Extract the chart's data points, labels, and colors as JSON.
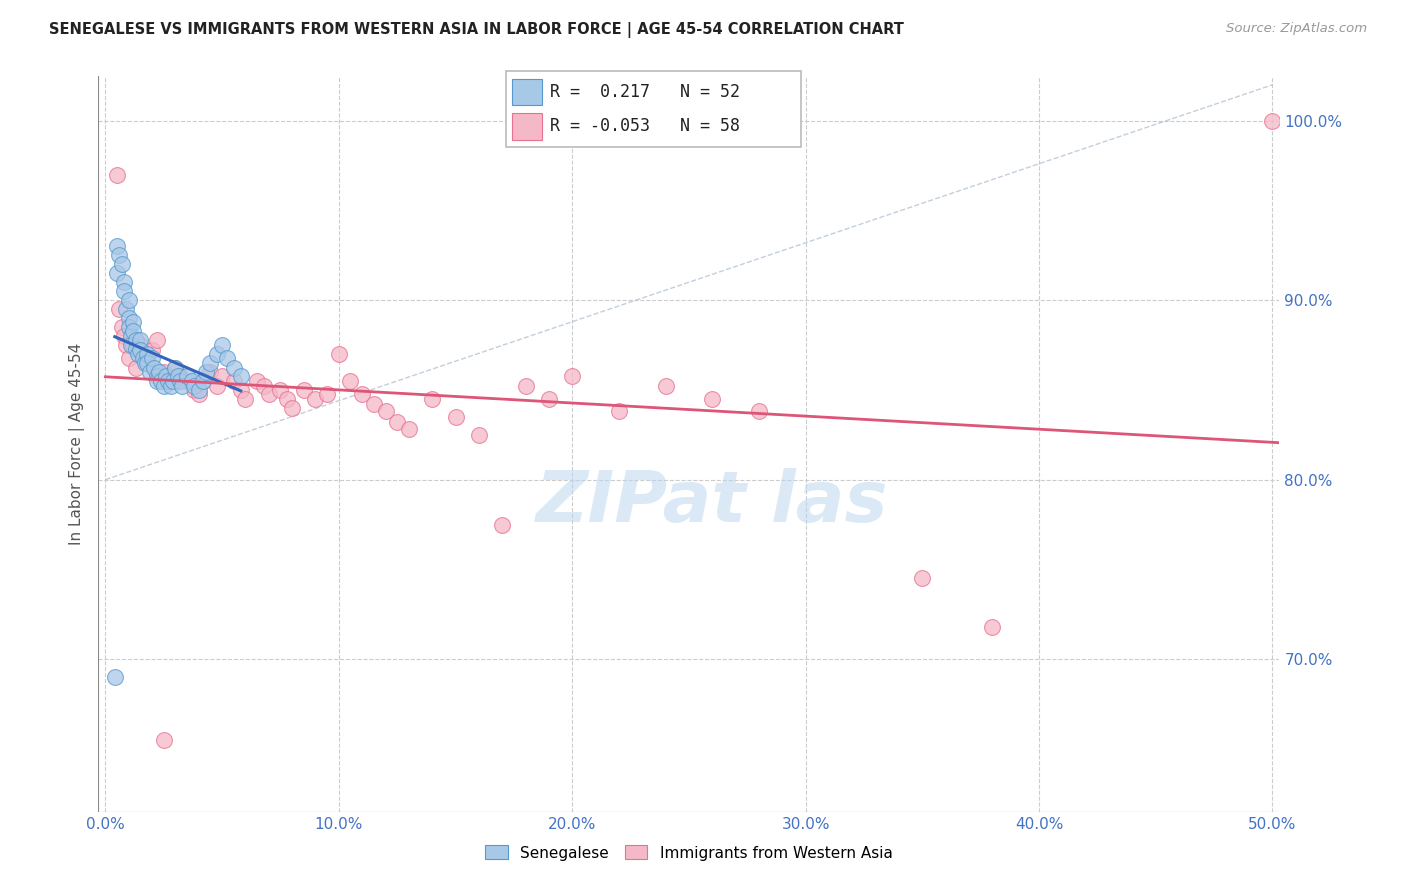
{
  "title": "SENEGALESE VS IMMIGRANTS FROM WESTERN ASIA IN LABOR FORCE | AGE 45-54 CORRELATION CHART",
  "source": "Source: ZipAtlas.com",
  "ylabel": "In Labor Force | Age 45-54",
  "xlim": [
    -0.003,
    0.503
  ],
  "ylim": [
    0.615,
    1.025
  ],
  "xticks": [
    0.0,
    0.1,
    0.2,
    0.3,
    0.4,
    0.5
  ],
  "yticks_right": [
    0.7,
    0.8,
    0.9,
    1.0
  ],
  "xtick_labels": [
    "0.0%",
    "10.0%",
    "20.0%",
    "30.0%",
    "40.0%",
    "50.0%"
  ],
  "ytick_labels_right": [
    "70.0%",
    "80.0%",
    "90.0%",
    "100.0%"
  ],
  "blue_color": "#a8c8e8",
  "pink_color": "#f4b8c8",
  "blue_edge": "#5599cc",
  "pink_edge": "#e87090",
  "trend_blue": "#3366bb",
  "trend_pink": "#dd5577",
  "diagonal_color": "#aabbcc",
  "legend_R_blue": "0.217",
  "legend_N_blue": "52",
  "legend_R_pink": "-0.053",
  "legend_N_pink": "58",
  "blue_x": [
    0.005,
    0.005,
    0.006,
    0.007,
    0.008,
    0.008,
    0.009,
    0.01,
    0.01,
    0.01,
    0.011,
    0.011,
    0.012,
    0.012,
    0.013,
    0.013,
    0.014,
    0.015,
    0.015,
    0.016,
    0.017,
    0.018,
    0.018,
    0.019,
    0.02,
    0.021,
    0.022,
    0.022,
    0.023,
    0.024,
    0.025,
    0.026,
    0.027,
    0.028,
    0.029,
    0.03,
    0.031,
    0.032,
    0.033,
    0.035,
    0.037,
    0.038,
    0.04,
    0.042,
    0.043,
    0.045,
    0.048,
    0.05,
    0.052,
    0.055,
    0.058,
    0.004
  ],
  "blue_y": [
    0.93,
    0.915,
    0.925,
    0.92,
    0.91,
    0.905,
    0.895,
    0.9,
    0.89,
    0.885,
    0.88,
    0.875,
    0.888,
    0.883,
    0.878,
    0.873,
    0.87,
    0.878,
    0.872,
    0.868,
    0.865,
    0.87,
    0.865,
    0.86,
    0.868,
    0.862,
    0.858,
    0.855,
    0.86,
    0.855,
    0.852,
    0.858,
    0.855,
    0.852,
    0.855,
    0.862,
    0.858,
    0.855,
    0.852,
    0.858,
    0.855,
    0.852,
    0.85,
    0.855,
    0.86,
    0.865,
    0.87,
    0.875,
    0.868,
    0.862,
    0.858,
    0.69
  ],
  "pink_x": [
    0.005,
    0.006,
    0.007,
    0.008,
    0.009,
    0.01,
    0.012,
    0.013,
    0.015,
    0.016,
    0.018,
    0.02,
    0.022,
    0.025,
    0.027,
    0.03,
    0.032,
    0.035,
    0.038,
    0.04,
    0.042,
    0.045,
    0.048,
    0.05,
    0.055,
    0.058,
    0.06,
    0.065,
    0.068,
    0.07,
    0.075,
    0.078,
    0.08,
    0.085,
    0.09,
    0.095,
    0.1,
    0.105,
    0.11,
    0.115,
    0.12,
    0.125,
    0.13,
    0.14,
    0.15,
    0.16,
    0.17,
    0.18,
    0.19,
    0.2,
    0.22,
    0.24,
    0.26,
    0.28,
    0.35,
    0.38,
    0.5,
    0.025
  ],
  "pink_y": [
    0.97,
    0.895,
    0.885,
    0.88,
    0.875,
    0.868,
    0.875,
    0.862,
    0.875,
    0.87,
    0.868,
    0.872,
    0.878,
    0.86,
    0.855,
    0.862,
    0.858,
    0.855,
    0.85,
    0.848,
    0.855,
    0.86,
    0.852,
    0.858,
    0.855,
    0.85,
    0.845,
    0.855,
    0.852,
    0.848,
    0.85,
    0.845,
    0.84,
    0.85,
    0.845,
    0.848,
    0.87,
    0.855,
    0.848,
    0.842,
    0.838,
    0.832,
    0.828,
    0.845,
    0.835,
    0.825,
    0.775,
    0.852,
    0.845,
    0.858,
    0.838,
    0.852,
    0.845,
    0.838,
    0.745,
    0.718,
    1.0,
    0.655
  ]
}
